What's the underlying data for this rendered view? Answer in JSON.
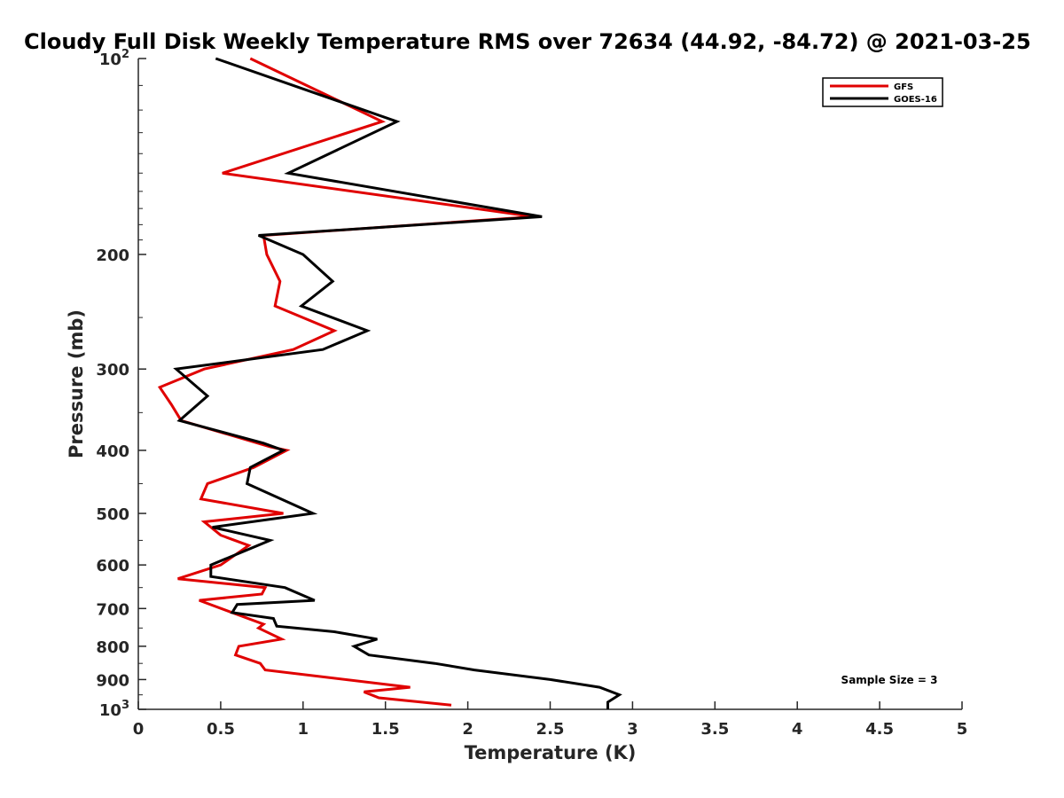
{
  "chart_data": {
    "type": "line",
    "title": "Cloudy Full Disk Weekly Temperature RMS over 72634 (44.92, -84.72) @ 2021-03-25",
    "xlabel": "Temperature (K)",
    "ylabel": "Pressure (mb)",
    "xlim": [
      0,
      5
    ],
    "ylim": [
      100,
      1000
    ],
    "y_scale": "log",
    "y_reversed": true,
    "x_ticks": [
      "0",
      "0.5",
      "1",
      "1.5",
      "2",
      "2.5",
      "3",
      "3.5",
      "4",
      "4.5",
      "5"
    ],
    "y_ticks": [
      {
        "value": 100,
        "base": "10",
        "exp": "2"
      },
      {
        "value": 200,
        "label": "200"
      },
      {
        "value": 300,
        "label": "300"
      },
      {
        "value": 400,
        "label": "400"
      },
      {
        "value": 500,
        "label": "500"
      },
      {
        "value": 600,
        "label": "600"
      },
      {
        "value": 700,
        "label": "700"
      },
      {
        "value": 800,
        "label": "800"
      },
      {
        "value": 900,
        "label": "900"
      },
      {
        "value": 1000,
        "base": "10",
        "exp": "3"
      }
    ],
    "grid": false,
    "legend_position": "top-right",
    "annotation": "Sample Size = 3",
    "series": [
      {
        "name": "GFS",
        "color": "#e00000",
        "x": [
          0.68,
          1.48,
          0.51,
          2.4,
          0.76,
          0.78,
          0.86,
          0.83,
          1.19,
          0.94,
          0.4,
          0.13,
          0.2,
          0.26,
          0.8,
          0.9,
          0.7,
          0.42,
          0.38,
          0.88,
          0.4,
          0.5,
          0.67,
          0.5,
          0.24,
          0.77,
          0.75,
          0.37,
          0.76,
          0.73,
          0.87,
          0.61,
          0.59,
          0.74,
          0.77,
          1.65,
          1.37,
          1.46,
          1.9
        ],
        "y": [
          100,
          125,
          150,
          175,
          187,
          200,
          220,
          240,
          262,
          280,
          300,
          320,
          340,
          360,
          395,
          400,
          425,
          450,
          475,
          500,
          515,
          540,
          560,
          600,
          630,
          650,
          665,
          680,
          740,
          750,
          780,
          800,
          825,
          850,
          870,
          925,
          940,
          960,
          985
        ]
      },
      {
        "name": "GOES-16",
        "color": "#000000",
        "x": [
          0.47,
          1.57,
          0.91,
          2.45,
          0.73,
          1.0,
          1.18,
          0.99,
          1.39,
          1.12,
          0.23,
          0.42,
          0.25,
          0.76,
          0.88,
          0.68,
          0.66,
          1.06,
          0.45,
          0.8,
          0.51,
          0.44,
          0.44,
          0.89,
          1.07,
          0.6,
          0.57,
          0.82,
          0.84,
          1.19,
          1.45,
          1.31,
          1.4,
          1.8,
          2.04,
          2.5,
          2.8,
          2.92,
          2.85,
          2.85
        ],
        "y": [
          100,
          125,
          150,
          175,
          187,
          200,
          220,
          240,
          262,
          280,
          300,
          330,
          360,
          390,
          400,
          425,
          450,
          500,
          525,
          550,
          590,
          600,
          625,
          650,
          680,
          690,
          710,
          725,
          745,
          760,
          780,
          800,
          825,
          850,
          870,
          900,
          925,
          950,
          975,
          1000
        ]
      }
    ]
  }
}
